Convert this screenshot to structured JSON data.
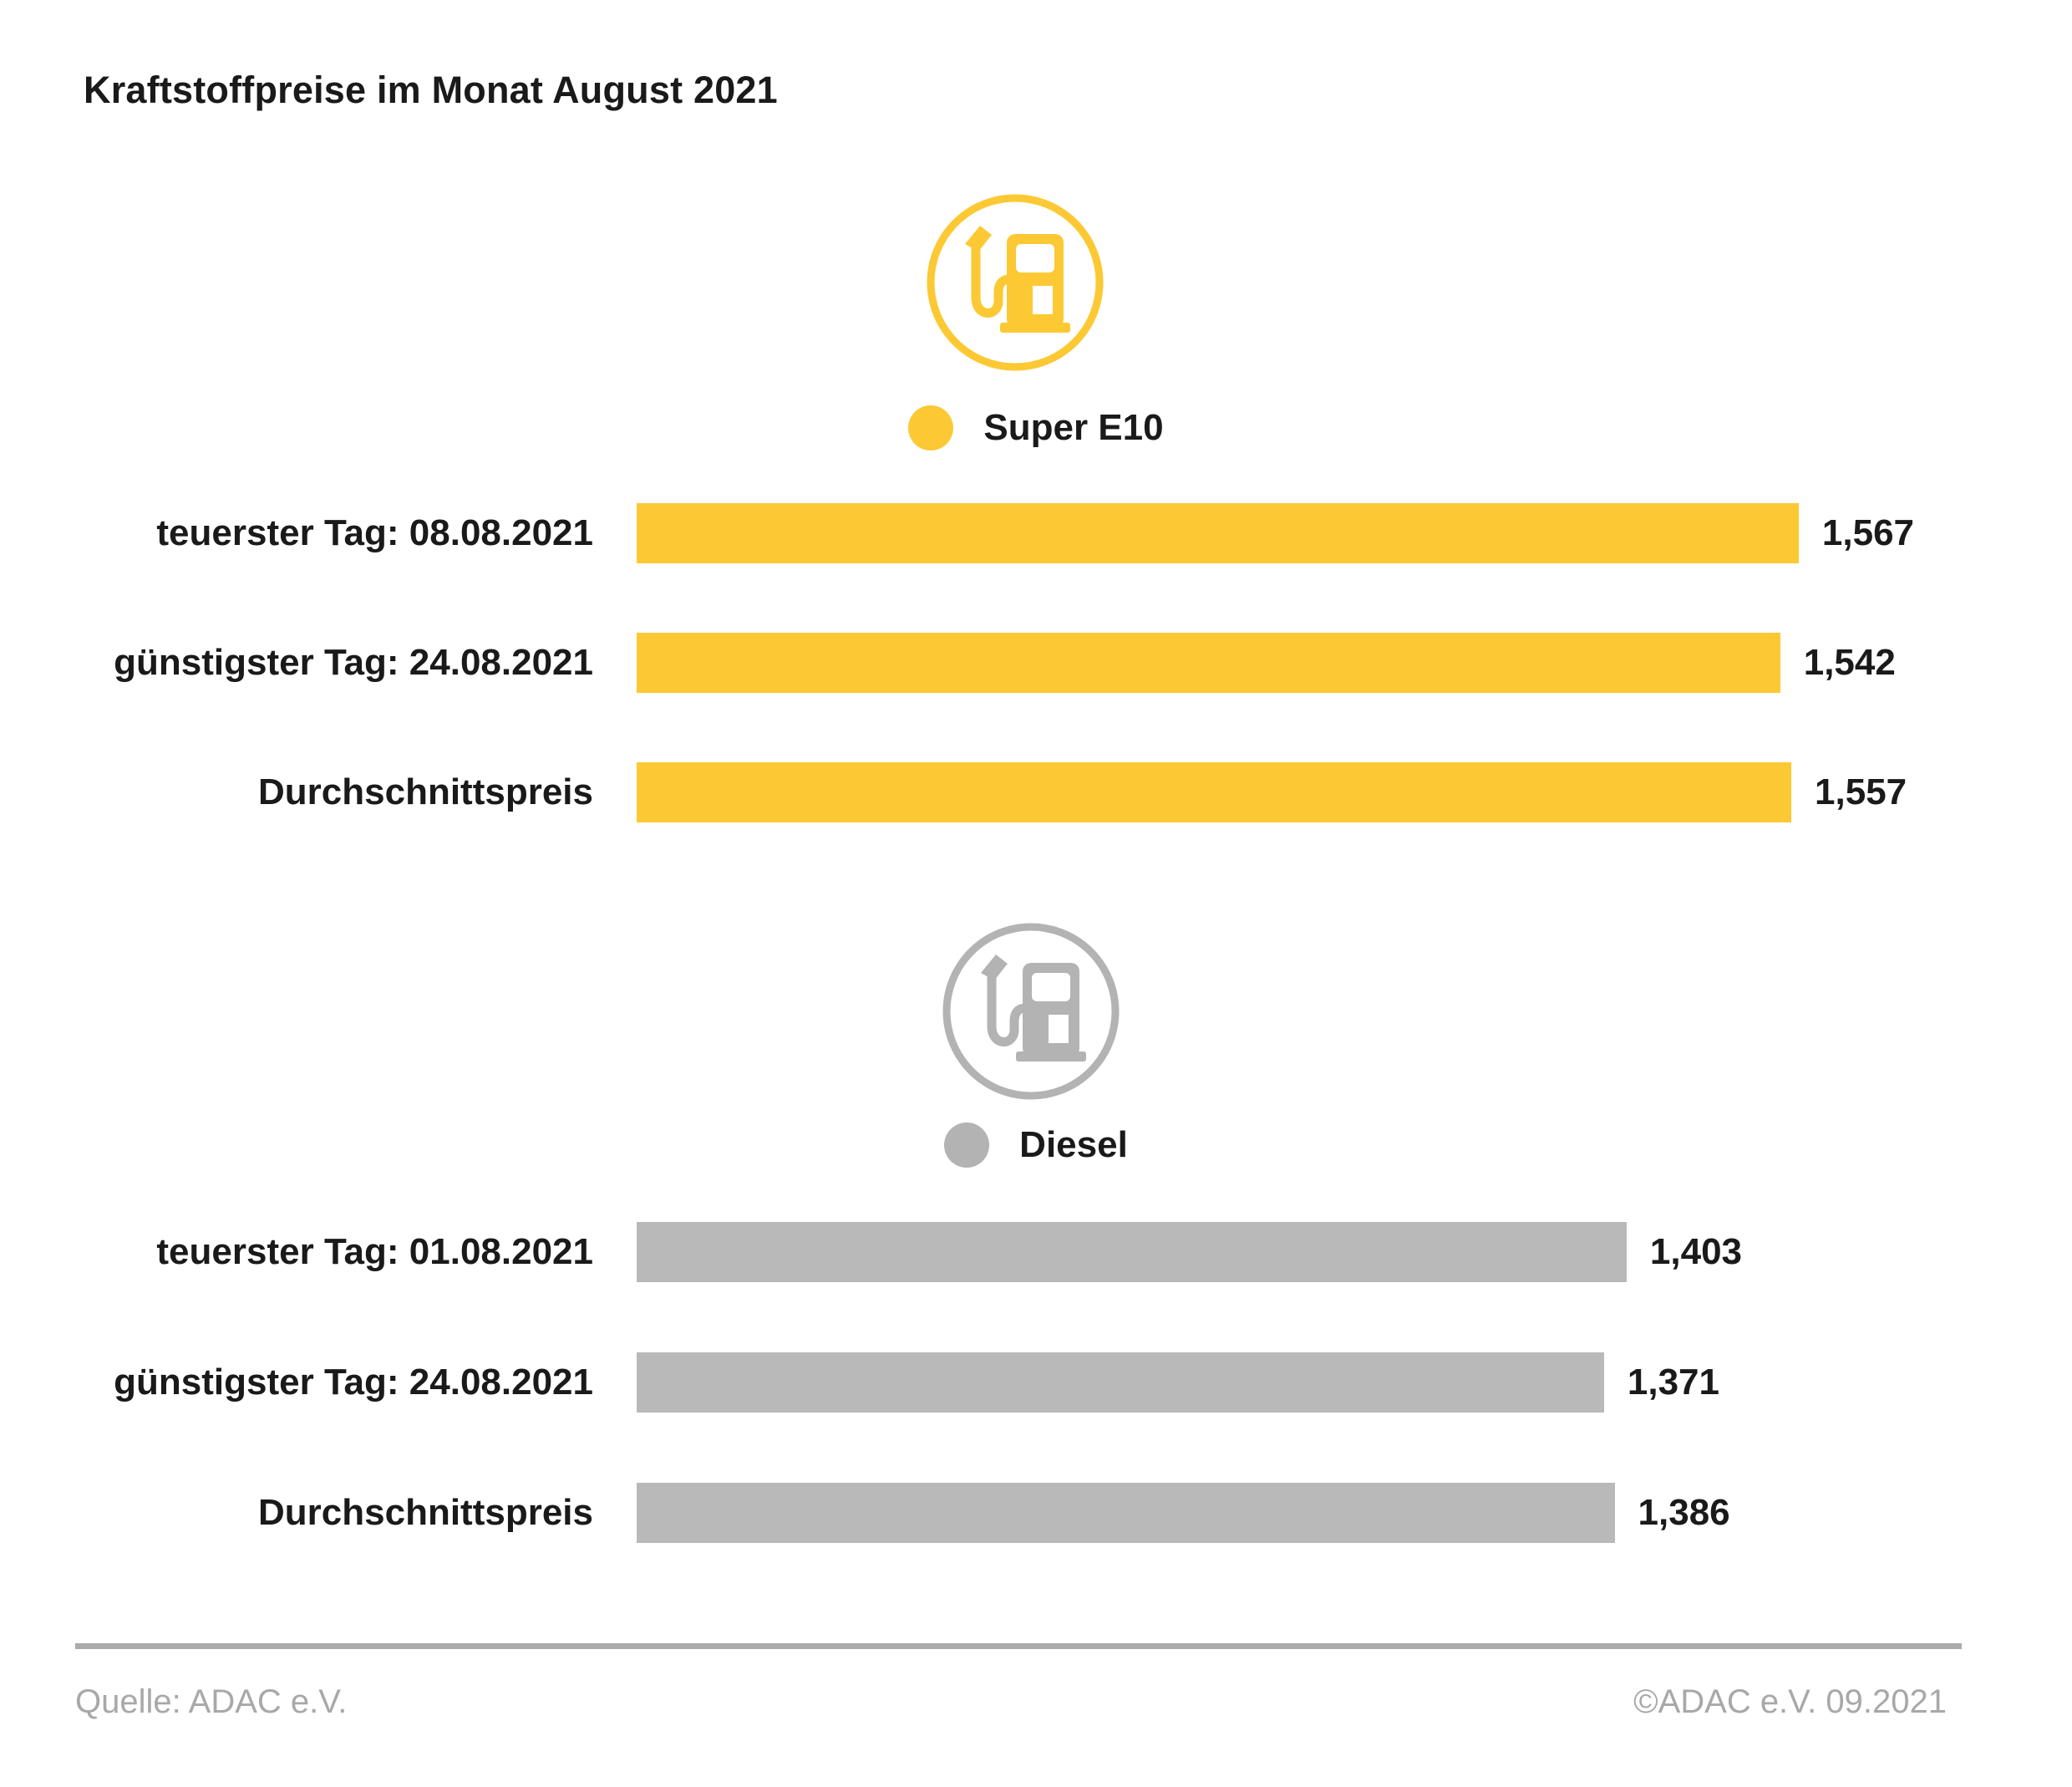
{
  "title": "Kraftstoffpreise im Monat August 2021",
  "colors": {
    "super_e10": "#FCC934",
    "diesel": "#B9B9B9",
    "text": "#1A1A1A",
    "muted_gray": "#A8A8A8",
    "divider": "#ABABAB"
  },
  "sections": [
    {
      "id": "super-e10",
      "legend_label": "Super E10",
      "color": "#FCC934",
      "icon": "fuel-pump-icon",
      "max_width_pct": 84.4,
      "rows": [
        {
          "label": "teuerster Tag: 08.08.2021",
          "value": "1,567",
          "value_num": 1.567
        },
        {
          "label": "günstigster Tag: 24.08.2021",
          "value": "1,542",
          "value_num": 1.542
        },
        {
          "label": "Durchschnittspreis",
          "value": "1,557",
          "value_num": 1.557
        }
      ]
    },
    {
      "id": "diesel",
      "legend_label": "Diesel",
      "color": "#B9B9B9",
      "icon": "fuel-pump-icon",
      "max_width_pct": 71.9,
      "rows": [
        {
          "label": "teuerster Tag: 01.08.2021",
          "value": "1,403",
          "value_num": 1.403
        },
        {
          "label": "günstigster Tag: 24.08.2021",
          "value": "1,371",
          "value_num": 1.371
        },
        {
          "label": "Durchschnittspreis",
          "value": "1,386",
          "value_num": 1.386
        }
      ]
    }
  ],
  "footer": {
    "source": "Quelle: ADAC e.V.",
    "copyright": "©ADAC e.V. 09.2021"
  },
  "chart_data": [
    {
      "type": "bar",
      "orientation": "horizontal",
      "title": "Super E10",
      "categories": [
        "teuerster Tag: 08.08.2021",
        "günstigster Tag: 24.08.2021",
        "Durchschnittspreis"
      ],
      "values": [
        1.567,
        1.542,
        1.557
      ],
      "value_labels": [
        "1,567",
        "1,542",
        "1,557"
      ],
      "bar_color": "#FCC934",
      "xlabel": "",
      "ylabel": "",
      "grid": false,
      "legend_position": "top-center"
    },
    {
      "type": "bar",
      "orientation": "horizontal",
      "title": "Diesel",
      "categories": [
        "teuerster Tag: 01.08.2021",
        "günstigster Tag: 24.08.2021",
        "Durchschnittspreis"
      ],
      "values": [
        1.403,
        1.371,
        1.386
      ],
      "value_labels": [
        "1,403",
        "1,371",
        "1,386"
      ],
      "bar_color": "#B9B9B9",
      "xlabel": "",
      "ylabel": "",
      "grid": false,
      "legend_position": "top-center"
    }
  ]
}
